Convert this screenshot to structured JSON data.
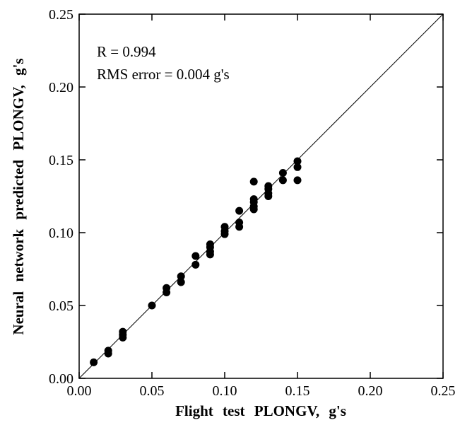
{
  "chart_data": {
    "type": "scatter",
    "title": "",
    "xlabel": "Flight test PLONGV, g's",
    "ylabel": "Neural network predicted PLONGV, g's",
    "xlim": [
      0,
      0.25
    ],
    "ylim": [
      0,
      0.25
    ],
    "x_ticks": [
      "0.00",
      "0.05",
      "0.10",
      "0.15",
      "0.20",
      "0.25"
    ],
    "y_ticks": [
      "0.00",
      "0.05",
      "0.10",
      "0.15",
      "0.20",
      "0.25"
    ],
    "grid": false,
    "legend": "none",
    "annotations": [
      "R = 0.994",
      "RMS error = 0.004 g's"
    ],
    "reference_line": {
      "from": [
        0,
        0
      ],
      "to": [
        0.25,
        0.25
      ]
    },
    "series": [
      {
        "points": [
          [
            0.01,
            0.011
          ],
          [
            0.02,
            0.017
          ],
          [
            0.02,
            0.019
          ],
          [
            0.03,
            0.028
          ],
          [
            0.03,
            0.03
          ],
          [
            0.03,
            0.032
          ],
          [
            0.05,
            0.05
          ],
          [
            0.06,
            0.059
          ],
          [
            0.06,
            0.062
          ],
          [
            0.07,
            0.066
          ],
          [
            0.07,
            0.07
          ],
          [
            0.08,
            0.078
          ],
          [
            0.08,
            0.084
          ],
          [
            0.09,
            0.085
          ],
          [
            0.09,
            0.087
          ],
          [
            0.09,
            0.09
          ],
          [
            0.09,
            0.092
          ],
          [
            0.1,
            0.099
          ],
          [
            0.1,
            0.101
          ],
          [
            0.1,
            0.104
          ],
          [
            0.11,
            0.104
          ],
          [
            0.11,
            0.107
          ],
          [
            0.11,
            0.115
          ],
          [
            0.12,
            0.116
          ],
          [
            0.12,
            0.118
          ],
          [
            0.12,
            0.121
          ],
          [
            0.12,
            0.123
          ],
          [
            0.12,
            0.135
          ],
          [
            0.13,
            0.125
          ],
          [
            0.13,
            0.127
          ],
          [
            0.13,
            0.13
          ],
          [
            0.13,
            0.132
          ],
          [
            0.14,
            0.136
          ],
          [
            0.14,
            0.141
          ],
          [
            0.15,
            0.136
          ],
          [
            0.15,
            0.145
          ],
          [
            0.15,
            0.149
          ]
        ]
      }
    ],
    "colors": {
      "marker": "#000000",
      "line": "#000000"
    }
  }
}
